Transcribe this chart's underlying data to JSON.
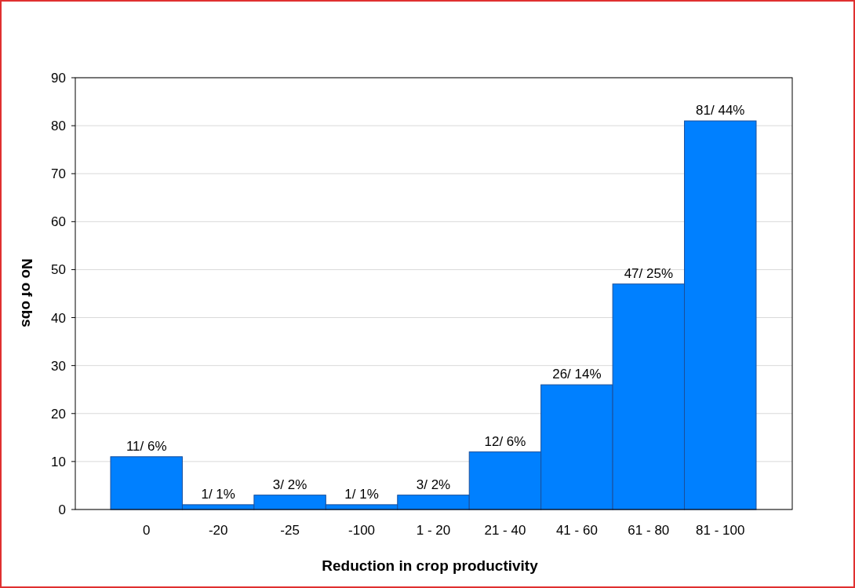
{
  "chart_data": {
    "type": "bar",
    "xlabel": "Reduction in crop productivity",
    "ylabel": "No of obs",
    "categories": [
      "0",
      "-20",
      "-25",
      "-100",
      "1 - 20",
      "21 - 40",
      "41 - 60",
      "61 - 80",
      "81 - 100"
    ],
    "values": [
      11,
      1,
      3,
      1,
      3,
      12,
      26,
      47,
      81
    ],
    "value_labels": [
      "11/ 6%",
      "1/ 1%",
      "3/ 2%",
      "1/ 1%",
      "3/ 2%",
      "12/ 6%",
      "26/ 14%",
      "47/ 25%",
      "81/ 44%"
    ],
    "color": "#0080ff",
    "ylim": [
      0,
      90
    ],
    "yticks": [
      0,
      10,
      20,
      30,
      40,
      50,
      60,
      70,
      80,
      90
    ],
    "grid": "y"
  }
}
